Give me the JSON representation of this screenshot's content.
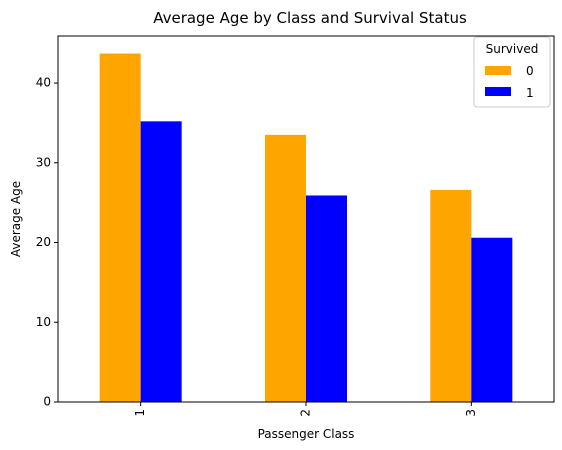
{
  "chart_data": {
    "type": "bar",
    "title": "Average Age by Class and Survival Status",
    "xlabel": "Passenger Class",
    "ylabel": "Average Age",
    "categories": [
      "1",
      "2",
      "3"
    ],
    "series": [
      {
        "name": "0",
        "color": "#ffa500",
        "values": [
          43.7,
          33.5,
          26.6
        ]
      },
      {
        "name": "1",
        "color": "#0000ff",
        "values": [
          35.2,
          25.9,
          20.6
        ]
      }
    ],
    "ylim": [
      0,
      45.9
    ],
    "yticks": [
      0,
      10,
      20,
      30,
      40
    ],
    "grid": false,
    "legend": {
      "title": "Survived",
      "placement": "top-right"
    }
  }
}
